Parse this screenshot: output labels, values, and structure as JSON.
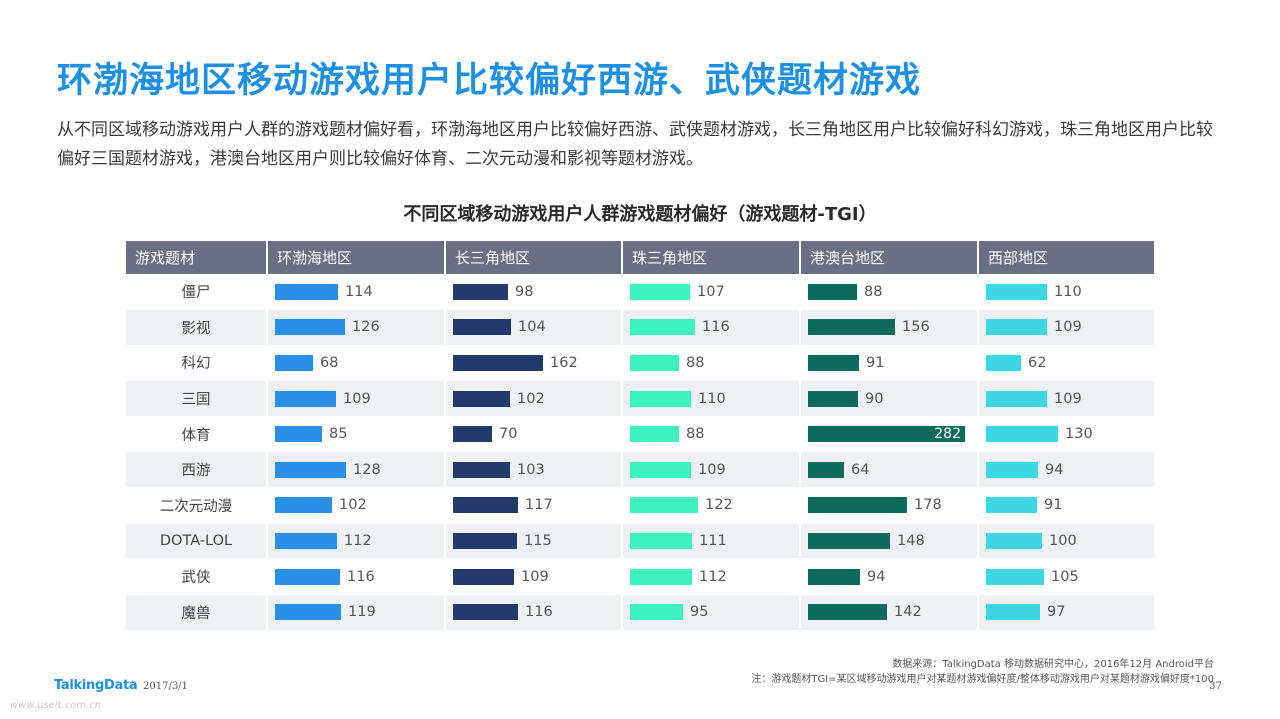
{
  "header": {
    "title": "环渤海地区移动游戏用户比较偏好西游、武侠题材游戏",
    "description": "从不同区域移动游戏用户人群的游戏题材偏好看，环渤海地区用户比较偏好西游、武侠题材游戏，长三角地区用户比较偏好科幻游戏，珠三角地区用户比较偏好三国题材游戏，港澳台地区用户则比较偏好体育、二次元动漫和影视等题材游戏。"
  },
  "chart_data": {
    "type": "table",
    "title": "不同区域移动游戏用户人群游戏题材偏好（游戏题材-TGI）",
    "category_header": "游戏题材",
    "categories": [
      "僵尸",
      "影视",
      "科幻",
      "三国",
      "体育",
      "西游",
      "二次元动漫",
      "DOTA-LOL",
      "武侠",
      "魔兽"
    ],
    "series": [
      {
        "name": "环渤海地区",
        "color": "#2b8fe8",
        "values": [
          114,
          126,
          68,
          109,
          85,
          128,
          102,
          112,
          116,
          119
        ]
      },
      {
        "name": "长三角地区",
        "color": "#233a6d",
        "values": [
          98,
          104,
          162,
          102,
          70,
          103,
          117,
          115,
          109,
          116
        ]
      },
      {
        "name": "珠三角地区",
        "color": "#3ef2bd",
        "values": [
          107,
          116,
          88,
          110,
          88,
          109,
          122,
          111,
          112,
          95
        ]
      },
      {
        "name": "港澳台地区",
        "color": "#0c6b5e",
        "values": [
          88,
          156,
          91,
          90,
          282,
          64,
          178,
          148,
          94,
          142
        ]
      },
      {
        "name": "西部地区",
        "color": "#3dd6e2",
        "values": [
          110,
          109,
          62,
          109,
          130,
          94,
          91,
          100,
          105,
          97
        ]
      }
    ]
  },
  "footer": {
    "source": "数据来源：TalkingData 移动数据研究中心，2016年12月 Android平台",
    "note": "注：游戏题材TGI=某区域移动游戏用户对某题材游戏偏好度/整体移动游戏用户对某题材游戏偏好度*100",
    "logo": "TalkingData",
    "date": "2017/3/1",
    "page": "37",
    "watermark": "www.useit.com.cn"
  }
}
